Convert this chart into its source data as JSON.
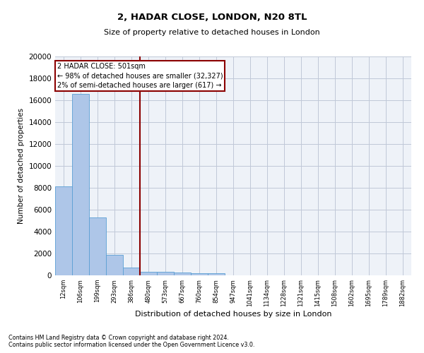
{
  "title1": "2, HADAR CLOSE, LONDON, N20 8TL",
  "title2": "Size of property relative to detached houses in London",
  "xlabel": "Distribution of detached houses by size in London",
  "ylabel": "Number of detached properties",
  "bin_labels": [
    "12sqm",
    "106sqm",
    "199sqm",
    "293sqm",
    "386sqm",
    "480sqm",
    "573sqm",
    "667sqm",
    "760sqm",
    "854sqm",
    "947sqm",
    "1041sqm",
    "1134sqm",
    "1228sqm",
    "1321sqm",
    "1415sqm",
    "1508sqm",
    "1602sqm",
    "1695sqm",
    "1789sqm",
    "1882sqm"
  ],
  "bar_values": [
    8100,
    16600,
    5300,
    1850,
    700,
    350,
    300,
    250,
    200,
    200,
    0,
    0,
    0,
    0,
    0,
    0,
    0,
    0,
    0,
    0,
    0
  ],
  "bar_color": "#aec6e8",
  "bar_edge_color": "#5a9fd4",
  "vline_x": 4.52,
  "vline_color": "#8b0000",
  "annotation_box_text": "2 HADAR CLOSE: 501sqm\n← 98% of detached houses are smaller (32,327)\n2% of semi-detached houses are larger (617) →",
  "annotation_box_color": "#8b0000",
  "ylim": [
    0,
    20000
  ],
  "yticks": [
    0,
    2000,
    4000,
    6000,
    8000,
    10000,
    12000,
    14000,
    16000,
    18000,
    20000
  ],
  "footer1": "Contains HM Land Registry data © Crown copyright and database right 2024.",
  "footer2": "Contains public sector information licensed under the Open Government Licence v3.0.",
  "grid_color": "#c0c8d8",
  "bg_color": "#eef2f8"
}
